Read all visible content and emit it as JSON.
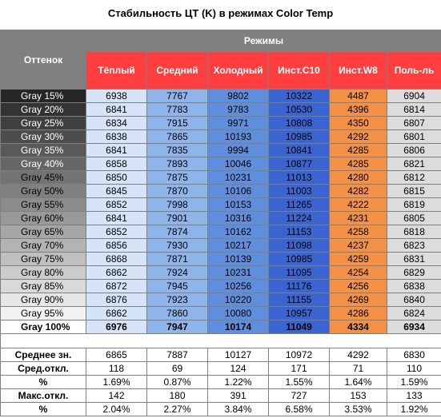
{
  "title": "Стабильность ЦТ (K) в режимах Color Temp",
  "header": {
    "shade_label": "Оттенок",
    "modes_label": "Режимы",
    "modes": [
      "Тёплый",
      "Средний",
      "Холодный",
      "Инст.С10",
      "Инст.W8",
      "Поль-ль"
    ]
  },
  "chart_data": {
    "type": "table",
    "title": "Стабильность ЦТ (K) в режимах Color Temp",
    "columns": [
      "Оттенок",
      "Тёплый",
      "Средний",
      "Холодный",
      "Инст.С10",
      "Инст.W8",
      "Поль-ль"
    ],
    "rows": [
      {
        "shade": "Gray 15%",
        "bg": "#262626",
        "fg": "#ffffff",
        "values": [
          "6938",
          "7767",
          "9802",
          "10322",
          "4487",
          "6904"
        ]
      },
      {
        "shade": "Gray 20%",
        "bg": "#333333",
        "fg": "#ffffff",
        "values": [
          "6841",
          "7783",
          "9783",
          "10530",
          "4396",
          "6814"
        ]
      },
      {
        "shade": "Gray 25%",
        "bg": "#404040",
        "fg": "#ffffff",
        "values": [
          "6834",
          "7915",
          "9971",
          "10808",
          "4350",
          "6807"
        ]
      },
      {
        "shade": "Gray 30%",
        "bg": "#4d4d4d",
        "fg": "#ffffff",
        "values": [
          "6838",
          "7865",
          "10193",
          "10985",
          "4292",
          "6801"
        ]
      },
      {
        "shade": "Gray 35%",
        "bg": "#595959",
        "fg": "#ffffff",
        "values": [
          "6841",
          "7835",
          "9994",
          "10841",
          "4285",
          "6806"
        ]
      },
      {
        "shade": "Gray 40%",
        "bg": "#666666",
        "fg": "#ffffff",
        "values": [
          "6858",
          "7893",
          "10046",
          "10877",
          "4285",
          "6821"
        ]
      },
      {
        "shade": "Gray 45%",
        "bg": "#737373",
        "fg": "#000000",
        "values": [
          "6850",
          "7875",
          "10231",
          "11013",
          "4280",
          "6812"
        ]
      },
      {
        "shade": "Gray 50%",
        "bg": "#808080",
        "fg": "#000000",
        "values": [
          "6845",
          "7870",
          "10106",
          "11003",
          "4282",
          "6815"
        ]
      },
      {
        "shade": "Gray 55%",
        "bg": "#8c8c8c",
        "fg": "#000000",
        "values": [
          "6852",
          "7998",
          "10153",
          "11265",
          "4222",
          "6819"
        ]
      },
      {
        "shade": "Gray 60%",
        "bg": "#999999",
        "fg": "#000000",
        "values": [
          "6841",
          "7901",
          "10316",
          "11224",
          "4231",
          "6805"
        ]
      },
      {
        "shade": "Gray 65%",
        "bg": "#a6a6a6",
        "fg": "#000000",
        "values": [
          "6852",
          "7874",
          "10162",
          "11153",
          "4258",
          "6818"
        ]
      },
      {
        "shade": "Gray 70%",
        "bg": "#b3b3b3",
        "fg": "#000000",
        "values": [
          "6856",
          "7930",
          "10217",
          "11098",
          "4237",
          "6823"
        ]
      },
      {
        "shade": "Gray 75%",
        "bg": "#bfbfbf",
        "fg": "#000000",
        "values": [
          "6868",
          "7871",
          "10139",
          "10985",
          "4259",
          "6831"
        ]
      },
      {
        "shade": "Gray 80%",
        "bg": "#cccccc",
        "fg": "#000000",
        "values": [
          "6862",
          "7924",
          "10231",
          "11095",
          "4254",
          "6829"
        ]
      },
      {
        "shade": "Gray 85%",
        "bg": "#d9d9d9",
        "fg": "#000000",
        "values": [
          "6872",
          "7945",
          "10256",
          "11176",
          "4256",
          "6838"
        ]
      },
      {
        "shade": "Gray 90%",
        "bg": "#e6e6e6",
        "fg": "#000000",
        "values": [
          "6876",
          "7923",
          "10220",
          "11155",
          "4269",
          "6840"
        ]
      },
      {
        "shade": "Gray 95%",
        "bg": "#f2f2f2",
        "fg": "#000000",
        "values": [
          "6862",
          "7860",
          "10080",
          "10957",
          "4286",
          "6824"
        ]
      },
      {
        "shade": "Gray 100%",
        "bg": "#ffffff",
        "fg": "#000000",
        "bold": true,
        "values": [
          "6976",
          "7947",
          "10174",
          "11049",
          "4334",
          "6934"
        ]
      }
    ],
    "summary": [
      {
        "label": "Среднее зн.",
        "values": [
          "6865",
          "7887",
          "10127",
          "10972",
          "4292",
          "6830"
        ]
      },
      {
        "label": "Сред.откл.",
        "values": [
          "118",
          "69",
          "124",
          "171",
          "71",
          "110"
        ]
      },
      {
        "label": "%",
        "values": [
          "1.69%",
          "0.87%",
          "1.22%",
          "1.55%",
          "1.64%",
          "1.59%"
        ]
      },
      {
        "label": "Макс.откл.",
        "values": [
          "142",
          "180",
          "391",
          "727",
          "153",
          "133"
        ]
      },
      {
        "label": "%",
        "values": [
          "2.04%",
          "2.27%",
          "3.84%",
          "6.58%",
          "3.53%",
          "1.92%"
        ]
      }
    ]
  },
  "colors": {
    "header_gray": "#808080",
    "header_red": "#ff3f3f",
    "warm": "#d6e4f7",
    "mid": "#8eb4ea",
    "cold": "#5f8fdc",
    "c10": "#3a64cf",
    "w8": "#f39146",
    "user": "#dcdcdc"
  }
}
